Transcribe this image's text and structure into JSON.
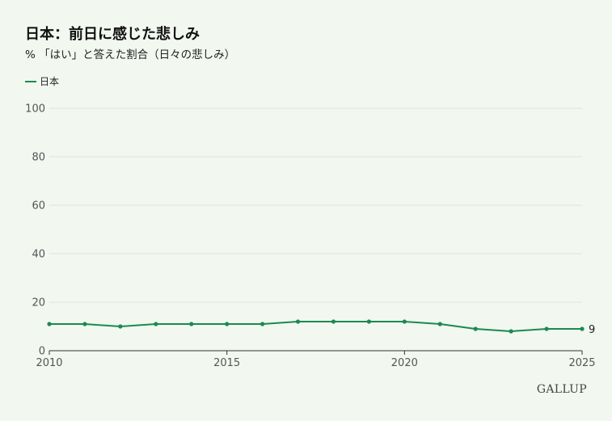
{
  "title": "日本：前日に感じた悲しみ",
  "subtitle": "% 「はい」と答えた割合（日々の悲しみ）",
  "brand": "GALLUP",
  "colors": {
    "series": "#1b8a4f",
    "grid": "#dfe4dd",
    "axis": "#333333",
    "tick_text": "#555555"
  },
  "chart_data": {
    "type": "line",
    "title": "日本：前日に感じた悲しみ",
    "subtitle": "% 「はい」と答えた割合（日々の悲しみ）",
    "x": [
      2010,
      2011,
      2012,
      2013,
      2014,
      2015,
      2016,
      2017,
      2018,
      2019,
      2020,
      2021,
      2022,
      2023,
      2024,
      2025
    ],
    "series": [
      {
        "name": "日本",
        "values": [
          11,
          11,
          10,
          11,
          11,
          11,
          11,
          12,
          12,
          12,
          12,
          11,
          9,
          8,
          9,
          9
        ]
      }
    ],
    "xticks": [
      2010,
      2015,
      2020,
      2025
    ],
    "yticks": [
      0,
      20,
      40,
      60,
      80,
      100
    ],
    "ylim": [
      0,
      100
    ],
    "xlim": [
      2010,
      2025
    ],
    "end_label": "9",
    "grid": true,
    "legend_position": "top-left"
  }
}
